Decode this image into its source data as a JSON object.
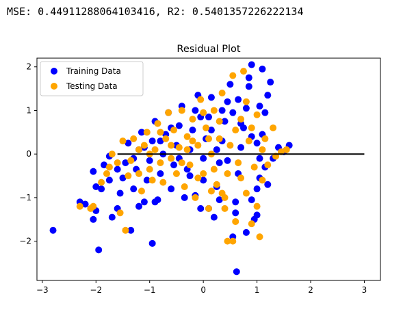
{
  "output_line": "MSE: 0.44911288064103416, R2: 0.5401357226222134",
  "chart_data": {
    "type": "scatter",
    "title": "Residual Plot",
    "xlabel": "",
    "ylabel": "",
    "xlim": [
      -3.1,
      3.3
    ],
    "ylim": [
      -2.9,
      2.2
    ],
    "xticks": [
      -3,
      -2,
      -1,
      0,
      1,
      2,
      3
    ],
    "yticks": [
      -2,
      -1,
      0,
      1,
      2
    ],
    "grid": false,
    "legend_position": "top-left",
    "series": [
      {
        "name": "Training Data",
        "color": "#0000ff",
        "points": [
          [
            -2.8,
            -1.75
          ],
          [
            -2.3,
            -1.1
          ],
          [
            -2.2,
            -1.15
          ],
          [
            -2.05,
            -1.5
          ],
          [
            -1.95,
            -2.2
          ],
          [
            -2.0,
            -0.75
          ],
          [
            -2.05,
            -0.4
          ],
          [
            -1.9,
            -0.8
          ],
          [
            -1.85,
            -0.25
          ],
          [
            -1.75,
            -0.05
          ],
          [
            -1.7,
            -1.45
          ],
          [
            -1.6,
            -1.25
          ],
          [
            -1.55,
            -0.9
          ],
          [
            -1.5,
            -0.55
          ],
          [
            -1.45,
            -0.2
          ],
          [
            -1.4,
            0.25
          ],
          [
            -1.35,
            -1.75
          ],
          [
            -1.3,
            -0.8
          ],
          [
            -1.25,
            -0.35
          ],
          [
            -1.2,
            0.1
          ],
          [
            -1.15,
            0.5
          ],
          [
            -1.1,
            -1.1
          ],
          [
            -1.05,
            -0.6
          ],
          [
            -1.0,
            -0.15
          ],
          [
            -0.95,
            0.3
          ],
          [
            -0.9,
            0.75
          ],
          [
            -0.95,
            -2.05
          ],
          [
            -0.85,
            -1.05
          ],
          [
            -0.8,
            -0.45
          ],
          [
            -0.75,
            0.0
          ],
          [
            -0.7,
            0.45
          ],
          [
            -0.65,
            0.95
          ],
          [
            -0.6,
            -0.8
          ],
          [
            -0.55,
            -0.25
          ],
          [
            -0.5,
            0.2
          ],
          [
            -0.45,
            0.65
          ],
          [
            -0.4,
            1.1
          ],
          [
            -0.35,
            -1.0
          ],
          [
            -0.3,
            -0.35
          ],
          [
            -0.25,
            0.1
          ],
          [
            -0.2,
            0.55
          ],
          [
            -0.15,
            1.0
          ],
          [
            -0.1,
            1.35
          ],
          [
            -0.05,
            -1.25
          ],
          [
            0.0,
            -0.6
          ],
          [
            0.0,
            -0.1
          ],
          [
            0.05,
            0.35
          ],
          [
            0.1,
            0.85
          ],
          [
            0.15,
            1.3
          ],
          [
            0.2,
            -1.45
          ],
          [
            0.25,
            -0.75
          ],
          [
            0.3,
            -0.2
          ],
          [
            0.35,
            0.3
          ],
          [
            0.4,
            0.75
          ],
          [
            0.45,
            1.2
          ],
          [
            0.5,
            1.6
          ],
          [
            0.55,
            -1.9
          ],
          [
            0.6,
            -1.1
          ],
          [
            0.65,
            -0.45
          ],
          [
            0.7,
            0.15
          ],
          [
            0.75,
            0.6
          ],
          [
            0.8,
            1.05
          ],
          [
            0.85,
            1.55
          ],
          [
            0.9,
            2.05
          ],
          [
            0.62,
            -2.7
          ],
          [
            0.95,
            -1.5
          ],
          [
            1.0,
            -0.8
          ],
          [
            1.05,
            -0.1
          ],
          [
            1.1,
            0.45
          ],
          [
            1.15,
            0.95
          ],
          [
            1.2,
            1.35
          ],
          [
            1.25,
            1.65
          ],
          [
            1.1,
            1.95
          ],
          [
            0.8,
            -1.8
          ],
          [
            1.0,
            -1.4
          ],
          [
            1.05,
            -0.55
          ],
          [
            1.15,
            -0.3
          ],
          [
            1.3,
            -0.1
          ],
          [
            1.4,
            0.15
          ],
          [
            1.5,
            0.05
          ],
          [
            1.6,
            0.2
          ],
          [
            1.0,
            0.25
          ],
          [
            0.9,
            0.4
          ],
          [
            0.7,
            0.7
          ],
          [
            0.55,
            0.95
          ],
          [
            0.35,
            1.0
          ],
          [
            -0.6,
            0.6
          ],
          [
            -0.8,
            0.3
          ],
          [
            -1.1,
            0.15
          ],
          [
            -1.3,
            -0.1
          ],
          [
            -1.6,
            -0.35
          ],
          [
            -1.75,
            -0.6
          ],
          [
            -2.0,
            -1.3
          ],
          [
            0.25,
            0.1
          ],
          [
            0.45,
            -0.15
          ],
          [
            -0.25,
            -0.5
          ],
          [
            -0.45,
            -0.1
          ],
          [
            0.15,
            0.55
          ],
          [
            -0.05,
            0.85
          ],
          [
            0.65,
            1.25
          ],
          [
            0.85,
            1.75
          ],
          [
            1.05,
            1.1
          ],
          [
            0.3,
            -1.05
          ],
          [
            0.1,
            -1.25
          ],
          [
            -0.15,
            -0.95
          ],
          [
            0.6,
            -1.35
          ],
          [
            0.9,
            -1.05
          ],
          [
            1.2,
            -0.7
          ],
          [
            -1.2,
            -1.2
          ],
          [
            -0.9,
            -1.1
          ]
        ]
      },
      {
        "name": "Testing Data",
        "color": "#ffa500",
        "points": [
          [
            -2.3,
            -1.2
          ],
          [
            -2.1,
            -1.25
          ],
          [
            -2.05,
            -1.2
          ],
          [
            -1.9,
            -0.65
          ],
          [
            -1.8,
            -0.45
          ],
          [
            -1.75,
            -0.3
          ],
          [
            -1.7,
            0.0
          ],
          [
            -1.6,
            -0.2
          ],
          [
            -1.55,
            -1.35
          ],
          [
            -1.45,
            -1.75
          ],
          [
            -1.5,
            0.3
          ],
          [
            -1.4,
            -0.5
          ],
          [
            -1.35,
            -0.15
          ],
          [
            -1.3,
            0.35
          ],
          [
            -1.2,
            -0.45
          ],
          [
            -1.15,
            -0.85
          ],
          [
            -1.1,
            0.2
          ],
          [
            -1.05,
            0.5
          ],
          [
            -1.0,
            -0.35
          ],
          [
            -0.95,
            -0.6
          ],
          [
            -0.9,
            0.1
          ],
          [
            -0.85,
            0.7
          ],
          [
            -0.8,
            -0.2
          ],
          [
            -0.75,
            -0.65
          ],
          [
            -0.7,
            0.35
          ],
          [
            -0.65,
            0.95
          ],
          [
            -0.6,
            -0.1
          ],
          [
            -0.55,
            0.55
          ],
          [
            -0.5,
            -0.45
          ],
          [
            -0.45,
            0.15
          ],
          [
            -0.4,
            1.0
          ],
          [
            -0.35,
            -0.75
          ],
          [
            -0.3,
            0.4
          ],
          [
            -0.25,
            -0.25
          ],
          [
            -0.2,
            0.8
          ],
          [
            -0.15,
            -1.0
          ],
          [
            -0.1,
            0.2
          ],
          [
            -0.05,
            1.25
          ],
          [
            0.0,
            -0.45
          ],
          [
            0.05,
            0.6
          ],
          [
            0.1,
            -1.25
          ],
          [
            0.15,
            0.0
          ],
          [
            0.2,
            1.0
          ],
          [
            0.25,
            -0.7
          ],
          [
            0.3,
            0.35
          ],
          [
            0.35,
            1.4
          ],
          [
            0.4,
            -1.0
          ],
          [
            0.45,
            -2.0
          ],
          [
            0.5,
            0.2
          ],
          [
            0.55,
            1.8
          ],
          [
            0.6,
            -1.55
          ],
          [
            0.65,
            -0.2
          ],
          [
            0.7,
            0.8
          ],
          [
            0.75,
            1.9
          ],
          [
            0.8,
            -0.9
          ],
          [
            0.85,
            0.3
          ],
          [
            0.9,
            -1.6
          ],
          [
            0.95,
            -0.3
          ],
          [
            1.0,
            0.9
          ],
          [
            1.05,
            -1.9
          ],
          [
            1.1,
            -0.6
          ],
          [
            1.15,
            0.35
          ],
          [
            1.2,
            -0.25
          ],
          [
            1.3,
            0.6
          ],
          [
            1.35,
            -0.05
          ],
          [
            1.45,
            0.05
          ],
          [
            1.55,
            0.1
          ],
          [
            1.0,
            -1.2
          ],
          [
            0.55,
            -2.0
          ],
          [
            0.4,
            -1.25
          ],
          [
            0.2,
            -0.35
          ],
          [
            0.0,
            0.95
          ],
          [
            -0.2,
            0.3
          ],
          [
            -0.4,
            -0.2
          ],
          [
            -0.6,
            0.2
          ],
          [
            -0.8,
            0.5
          ],
          [
            -1.0,
            0.0
          ],
          [
            -1.2,
            0.1
          ],
          [
            0.6,
            0.55
          ],
          [
            0.8,
            1.2
          ],
          [
            0.3,
            0.75
          ],
          [
            0.1,
            0.35
          ],
          [
            -0.1,
            -0.55
          ],
          [
            0.45,
            -0.45
          ],
          [
            0.7,
            -0.55
          ],
          [
            0.9,
            0.6
          ],
          [
            1.1,
            0.1
          ],
          [
            0.35,
            -0.9
          ],
          [
            0.15,
            -0.85
          ],
          [
            -0.3,
            0.1
          ]
        ]
      }
    ],
    "reference_line": {
      "x": [
        -1.6,
        3.0
      ],
      "y": [
        0,
        0
      ],
      "color": "#000000"
    }
  }
}
